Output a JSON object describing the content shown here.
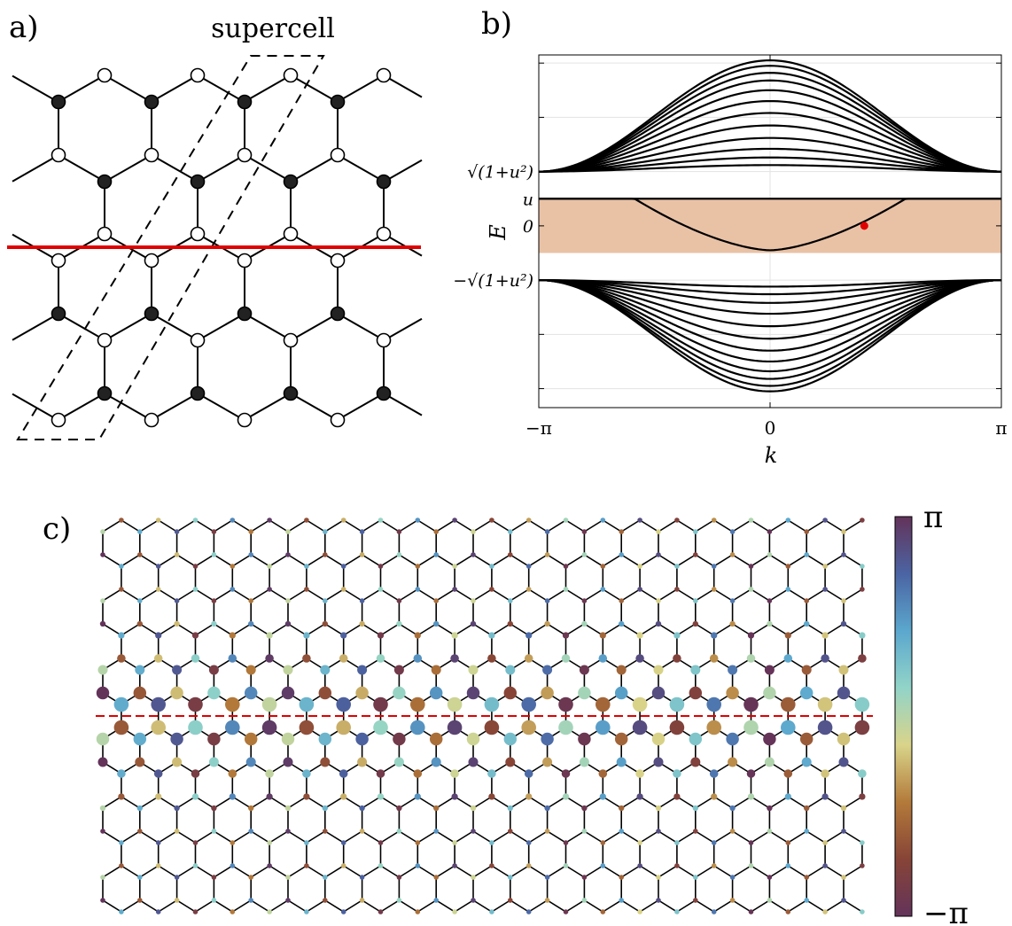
{
  "panels": {
    "a": {
      "label": "a)",
      "annotation": "supercell"
    },
    "b": {
      "label": "b)"
    },
    "c": {
      "label": "c)"
    }
  },
  "chart_data": [
    {
      "type": "line",
      "panel": "b",
      "xlabel": "k",
      "ylabel": "E",
      "xlim": [
        -3.1416,
        3.1416
      ],
      "xticks": [
        "−π",
        "0",
        "π"
      ],
      "yticks": [
        "√(1+u²)",
        "u",
        "0",
        "−√(1+u²)"
      ],
      "ytick_values": [
        1.0,
        0.5,
        0.0,
        -1.0
      ],
      "grid": true,
      "highlight_band": {
        "from": -0.5,
        "to": 0.5,
        "color": "#e9c2a6"
      },
      "marker": {
        "x": 1.28,
        "y": 0.0,
        "color": "#e00000"
      },
      "bulk_bands": {
        "upper_center_energies": [
          3.05,
          2.95,
          2.82,
          2.68,
          2.5,
          2.3,
          2.08,
          1.85,
          1.62,
          1.42,
          1.26,
          1.12
        ],
        "edge_energy_at_pi": 1.0,
        "lower_center_energies": [
          -3.05,
          -2.95,
          -2.82,
          -2.68,
          -2.5,
          -2.3,
          -2.08,
          -1.85,
          -1.62,
          -1.42,
          -1.26,
          -1.12
        ]
      },
      "edge_states": {
        "flat_level": 0.5,
        "flat_for_abs_k_above": 1.84,
        "dispersive_min_at_zero": -0.45
      }
    },
    {
      "type": "heatmap",
      "panel": "c",
      "colorbar": {
        "max_label": "π",
        "min_label": "−π",
        "stops": [
          "#63335a",
          "#874437",
          "#b37a3a",
          "#d9d48a",
          "#92d4c8",
          "#5ba7ce",
          "#4b64a3",
          "#63335a"
        ]
      }
    }
  ],
  "colors": {
    "edge_line": "#e00000",
    "filled_site": "#222222",
    "open_site": "#ffffff",
    "band_fill": "#e9c2a6"
  }
}
